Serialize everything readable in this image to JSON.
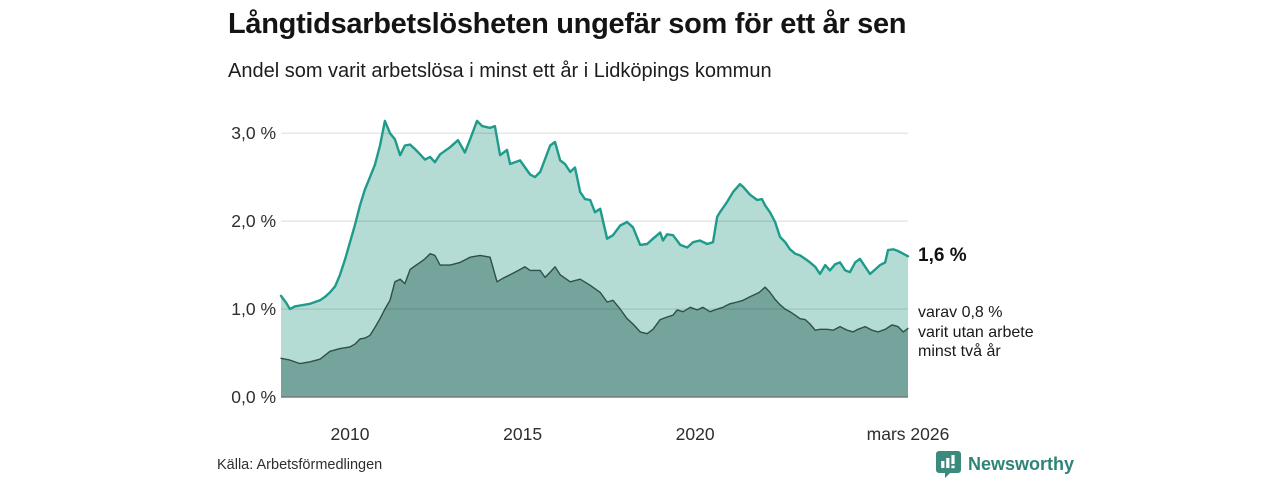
{
  "header": {
    "title": "Långtidsarbetslösheten ungefär som för ett år sen",
    "subtitle": "Andel som varit arbetslösa i minst ett år i Lidköpings kommun"
  },
  "annotations": {
    "latest_value": "1,6 %",
    "secondary": "varav 0,8 %\nvarit utan arbete\nminst två år"
  },
  "footer": {
    "source": "Källa: Arbetsförmedlingen",
    "brand_name": "Newsworthy"
  },
  "colors": {
    "accent_teal_line": "#1e9b8b",
    "fill_light": "#b5dbd5",
    "fill_dark": "#74a49b",
    "dark_line": "#2e5049",
    "grid": "#e0e0e0",
    "axis": "#7a7a7a",
    "tick_text": "#2e2e2e",
    "brand_teal": "#2e8577",
    "logo_background": "#3a8a7d"
  },
  "chart_data": {
    "type": "area",
    "title": "Långtidsarbetslösheten ungefär som för ett år sen",
    "subtitle": "Andel som varit arbetslösa i minst ett år i Lidköpings kommun",
    "xlabel": "",
    "ylabel": "",
    "x_domain": [
      2008.0,
      2026.17
    ],
    "y_domain": [
      0,
      3.4
    ],
    "grid": true,
    "legend_position": "none",
    "y_ticks": [
      {
        "v": 0.0,
        "label": "0,0 %"
      },
      {
        "v": 1.0,
        "label": "1,0 %"
      },
      {
        "v": 2.0,
        "label": "2,0 %"
      },
      {
        "v": 3.0,
        "label": "3,0 %"
      }
    ],
    "x_ticks": [
      {
        "v": 2010,
        "label": "2010"
      },
      {
        "v": 2015,
        "label": "2015"
      },
      {
        "v": 2020,
        "label": "2020"
      },
      {
        "v": 2026.17,
        "label": "mars 2026"
      }
    ],
    "series": [
      {
        "name": "Arbetslösa minst ett år",
        "fill": "#b5dbd5",
        "stroke": "#1e9b8b",
        "stroke_width": 2.4,
        "end_label": "1,6 %",
        "points": [
          [
            2008.0,
            1.15
          ],
          [
            2008.15,
            1.07
          ],
          [
            2008.26,
            1.0
          ],
          [
            2008.4,
            1.03
          ],
          [
            2008.55,
            1.04
          ],
          [
            2008.84,
            1.06
          ],
          [
            2009.13,
            1.1
          ],
          [
            2009.28,
            1.14
          ],
          [
            2009.42,
            1.19
          ],
          [
            2009.57,
            1.26
          ],
          [
            2009.71,
            1.39
          ],
          [
            2009.86,
            1.57
          ],
          [
            2010.0,
            1.76
          ],
          [
            2010.14,
            1.95
          ],
          [
            2010.29,
            2.18
          ],
          [
            2010.43,
            2.36
          ],
          [
            2010.58,
            2.5
          ],
          [
            2010.72,
            2.64
          ],
          [
            2010.87,
            2.86
          ],
          [
            2011.01,
            3.14
          ],
          [
            2011.16,
            3.0
          ],
          [
            2011.3,
            2.93
          ],
          [
            2011.45,
            2.75
          ],
          [
            2011.59,
            2.86
          ],
          [
            2011.74,
            2.87
          ],
          [
            2011.88,
            2.82
          ],
          [
            2012.03,
            2.76
          ],
          [
            2012.17,
            2.7
          ],
          [
            2012.32,
            2.73
          ],
          [
            2012.46,
            2.67
          ],
          [
            2012.61,
            2.76
          ],
          [
            2012.9,
            2.84
          ],
          [
            2013.13,
            2.92
          ],
          [
            2013.33,
            2.78
          ],
          [
            2013.48,
            2.93
          ],
          [
            2013.68,
            3.14
          ],
          [
            2013.83,
            3.08
          ],
          [
            2014.06,
            3.06
          ],
          [
            2014.2,
            3.08
          ],
          [
            2014.35,
            2.75
          ],
          [
            2014.55,
            2.81
          ],
          [
            2014.64,
            2.65
          ],
          [
            2014.93,
            2.69
          ],
          [
            2015.22,
            2.53
          ],
          [
            2015.36,
            2.5
          ],
          [
            2015.51,
            2.56
          ],
          [
            2015.8,
            2.86
          ],
          [
            2015.94,
            2.9
          ],
          [
            2016.09,
            2.69
          ],
          [
            2016.23,
            2.65
          ],
          [
            2016.38,
            2.56
          ],
          [
            2016.52,
            2.61
          ],
          [
            2016.67,
            2.33
          ],
          [
            2016.81,
            2.25
          ],
          [
            2016.96,
            2.24
          ],
          [
            2017.1,
            2.1
          ],
          [
            2017.25,
            2.14
          ],
          [
            2017.45,
            1.8
          ],
          [
            2017.62,
            1.84
          ],
          [
            2017.83,
            1.95
          ],
          [
            2018.03,
            1.99
          ],
          [
            2018.2,
            1.93
          ],
          [
            2018.41,
            1.73
          ],
          [
            2018.61,
            1.74
          ],
          [
            2018.78,
            1.8
          ],
          [
            2018.99,
            1.87
          ],
          [
            2019.07,
            1.78
          ],
          [
            2019.19,
            1.85
          ],
          [
            2019.36,
            1.84
          ],
          [
            2019.57,
            1.73
          ],
          [
            2019.77,
            1.7
          ],
          [
            2019.94,
            1.76
          ],
          [
            2020.14,
            1.78
          ],
          [
            2020.35,
            1.74
          ],
          [
            2020.52,
            1.76
          ],
          [
            2020.64,
            2.05
          ],
          [
            2020.72,
            2.1
          ],
          [
            2020.93,
            2.22
          ],
          [
            2021.1,
            2.33
          ],
          [
            2021.3,
            2.42
          ],
          [
            2021.39,
            2.39
          ],
          [
            2021.59,
            2.3
          ],
          [
            2021.8,
            2.24
          ],
          [
            2021.94,
            2.25
          ],
          [
            2022.03,
            2.18
          ],
          [
            2022.17,
            2.1
          ],
          [
            2022.32,
            1.99
          ],
          [
            2022.46,
            1.82
          ],
          [
            2022.61,
            1.76
          ],
          [
            2022.75,
            1.68
          ],
          [
            2022.9,
            1.63
          ],
          [
            2023.04,
            1.61
          ],
          [
            2023.19,
            1.57
          ],
          [
            2023.33,
            1.53
          ],
          [
            2023.48,
            1.48
          ],
          [
            2023.62,
            1.4
          ],
          [
            2023.77,
            1.5
          ],
          [
            2023.91,
            1.44
          ],
          [
            2024.06,
            1.51
          ],
          [
            2024.2,
            1.53
          ],
          [
            2024.35,
            1.44
          ],
          [
            2024.49,
            1.42
          ],
          [
            2024.64,
            1.53
          ],
          [
            2024.78,
            1.57
          ],
          [
            2024.93,
            1.48
          ],
          [
            2025.07,
            1.4
          ],
          [
            2025.22,
            1.45
          ],
          [
            2025.36,
            1.5
          ],
          [
            2025.51,
            1.53
          ],
          [
            2025.59,
            1.67
          ],
          [
            2025.74,
            1.68
          ],
          [
            2025.88,
            1.66
          ],
          [
            2026.03,
            1.63
          ],
          [
            2026.17,
            1.6
          ]
        ]
      },
      {
        "name": "Arbetslösa minst två år",
        "fill": "#74a49b",
        "stroke": "#2e5049",
        "stroke_width": 1.4,
        "end_label": "0,8 %",
        "points": [
          [
            2008.0,
            0.44
          ],
          [
            2008.26,
            0.42
          ],
          [
            2008.55,
            0.38
          ],
          [
            2008.84,
            0.4
          ],
          [
            2009.13,
            0.43
          ],
          [
            2009.42,
            0.52
          ],
          [
            2009.71,
            0.55
          ],
          [
            2010.0,
            0.57
          ],
          [
            2010.14,
            0.6
          ],
          [
            2010.29,
            0.66
          ],
          [
            2010.43,
            0.67
          ],
          [
            2010.58,
            0.7
          ],
          [
            2010.72,
            0.79
          ],
          [
            2010.87,
            0.89
          ],
          [
            2011.01,
            1.0
          ],
          [
            2011.16,
            1.1
          ],
          [
            2011.3,
            1.31
          ],
          [
            2011.45,
            1.34
          ],
          [
            2011.59,
            1.29
          ],
          [
            2011.74,
            1.45
          ],
          [
            2011.88,
            1.49
          ],
          [
            2012.03,
            1.53
          ],
          [
            2012.17,
            1.57
          ],
          [
            2012.32,
            1.63
          ],
          [
            2012.46,
            1.61
          ],
          [
            2012.61,
            1.5
          ],
          [
            2012.9,
            1.5
          ],
          [
            2013.19,
            1.53
          ],
          [
            2013.48,
            1.59
          ],
          [
            2013.77,
            1.61
          ],
          [
            2014.06,
            1.59
          ],
          [
            2014.26,
            1.31
          ],
          [
            2014.43,
            1.35
          ],
          [
            2014.64,
            1.39
          ],
          [
            2014.93,
            1.45
          ],
          [
            2015.07,
            1.48
          ],
          [
            2015.22,
            1.44
          ],
          [
            2015.51,
            1.44
          ],
          [
            2015.65,
            1.36
          ],
          [
            2015.8,
            1.42
          ],
          [
            2015.94,
            1.48
          ],
          [
            2016.09,
            1.39
          ],
          [
            2016.38,
            1.31
          ],
          [
            2016.67,
            1.34
          ],
          [
            2016.96,
            1.27
          ],
          [
            2017.25,
            1.19
          ],
          [
            2017.45,
            1.08
          ],
          [
            2017.62,
            1.1
          ],
          [
            2017.83,
            1.0
          ],
          [
            2018.03,
            0.89
          ],
          [
            2018.2,
            0.83
          ],
          [
            2018.41,
            0.74
          ],
          [
            2018.61,
            0.72
          ],
          [
            2018.78,
            0.77
          ],
          [
            2018.99,
            0.88
          ],
          [
            2019.19,
            0.91
          ],
          [
            2019.36,
            0.93
          ],
          [
            2019.48,
            0.99
          ],
          [
            2019.65,
            0.97
          ],
          [
            2019.86,
            1.02
          ],
          [
            2020.06,
            0.99
          ],
          [
            2020.23,
            1.02
          ],
          [
            2020.43,
            0.97
          ],
          [
            2020.64,
            1.0
          ],
          [
            2020.81,
            1.02
          ],
          [
            2021.01,
            1.06
          ],
          [
            2021.22,
            1.08
          ],
          [
            2021.39,
            1.1
          ],
          [
            2021.59,
            1.14
          ],
          [
            2021.86,
            1.19
          ],
          [
            2022.03,
            1.25
          ],
          [
            2022.17,
            1.19
          ],
          [
            2022.32,
            1.11
          ],
          [
            2022.46,
            1.05
          ],
          [
            2022.61,
            1.0
          ],
          [
            2022.75,
            0.97
          ],
          [
            2022.9,
            0.93
          ],
          [
            2023.04,
            0.89
          ],
          [
            2023.19,
            0.88
          ],
          [
            2023.33,
            0.83
          ],
          [
            2023.48,
            0.76
          ],
          [
            2023.62,
            0.77
          ],
          [
            2023.83,
            0.77
          ],
          [
            2024.0,
            0.76
          ],
          [
            2024.2,
            0.8
          ],
          [
            2024.41,
            0.76
          ],
          [
            2024.58,
            0.74
          ],
          [
            2024.72,
            0.77
          ],
          [
            2024.93,
            0.8
          ],
          [
            2025.13,
            0.76
          ],
          [
            2025.3,
            0.74
          ],
          [
            2025.51,
            0.77
          ],
          [
            2025.71,
            0.82
          ],
          [
            2025.88,
            0.8
          ],
          [
            2026.03,
            0.74
          ],
          [
            2026.17,
            0.78
          ]
        ]
      }
    ]
  }
}
